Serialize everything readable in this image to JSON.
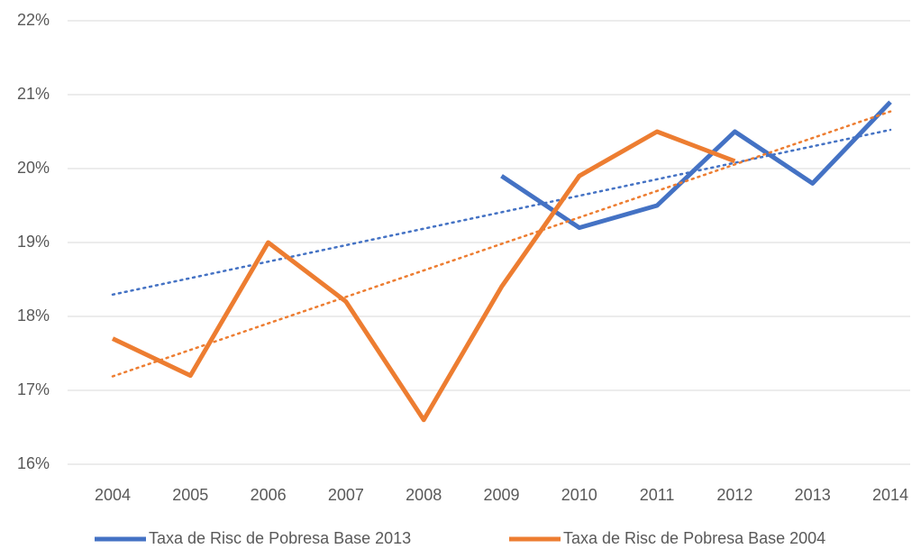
{
  "chart_data": {
    "type": "line",
    "categories": [
      "2004",
      "2005",
      "2006",
      "2007",
      "2008",
      "2009",
      "2010",
      "2011",
      "2012",
      "2013",
      "2014"
    ],
    "series": [
      {
        "name": "Taxa de Risc de Pobresa Base 2013",
        "color": "#4472c4",
        "values": [
          null,
          null,
          null,
          null,
          null,
          19.9,
          19.2,
          19.5,
          20.5,
          19.8,
          20.9
        ]
      },
      {
        "name": "Taxa de Risc de Pobresa Base 2004",
        "color": "#ed7d31",
        "values": [
          17.7,
          17.2,
          19.0,
          18.2,
          16.6,
          18.4,
          19.9,
          20.5,
          20.1,
          null,
          null
        ]
      }
    ],
    "ylim": [
      16,
      22
    ],
    "yticks": [
      {
        "value": 16,
        "label": "16%"
      },
      {
        "value": 17,
        "label": "17%"
      },
      {
        "value": 18,
        "label": "18%"
      },
      {
        "value": 19,
        "label": "19%"
      },
      {
        "value": 20,
        "label": "20%"
      },
      {
        "value": 21,
        "label": "21%"
      },
      {
        "value": 22,
        "label": "22%"
      }
    ],
    "grid": true,
    "trendline": true,
    "legend": "bottom"
  }
}
